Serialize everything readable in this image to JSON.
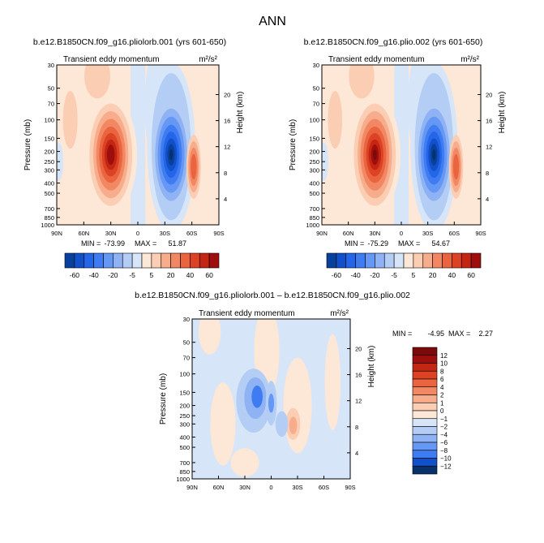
{
  "page_title": "ANN",
  "colors": {
    "neg": [
      "#08306b",
      "#08419c",
      "#1150c8",
      "#2565e8",
      "#3f7cf2",
      "#6597f4",
      "#8eb2f3",
      "#b4cdf5",
      "#d6e5f8"
    ],
    "pos": [
      "#fde7d7",
      "#fbcdb3",
      "#f7ac8b",
      "#f18863",
      "#e9643f",
      "#dc4224",
      "#c42614",
      "#9e0e0c",
      "#7d0a0a"
    ]
  },
  "chart_data": [
    {
      "id": "left",
      "type": "contour",
      "case": "b.e12.B1850CN.f09_g16.pliolorb.001  (yrs 601-650)",
      "variable": "Transient eddy momentum",
      "units": "m²/s²",
      "xlabels": [
        "90N",
        "60N",
        "30N",
        "0",
        "30S",
        "60S",
        "90S"
      ],
      "ylabel": "Pressure  (mb)",
      "pressure_ticks": [
        30,
        50,
        70,
        100,
        150,
        200,
        250,
        300,
        400,
        500,
        700,
        850,
        1000
      ],
      "y2label": "Height  (km)",
      "height_ticks": [
        4,
        8,
        12,
        16,
        20
      ],
      "stats": {
        "min_label": "MIN =",
        "min": "-73.99",
        "max_label": "MAX =",
        "max": "51.87"
      },
      "colorbar_labels": [
        "-60",
        "-40",
        "-20",
        "-5",
        "5",
        "20",
        "40",
        "60"
      ],
      "features": [
        {
          "lat": 30,
          "p": 215,
          "value": 51.87
        },
        {
          "lat": -37,
          "p": 215,
          "value": -73.99
        },
        {
          "lat": -62,
          "p": 280,
          "value": 22
        },
        {
          "lat": 45,
          "p": 40,
          "value": 8
        },
        {
          "lat": 75,
          "p": 100,
          "value": 5
        }
      ]
    },
    {
      "id": "right",
      "type": "contour",
      "case": "b.e12.B1850CN.f09_g16.plio.002  (yrs 601-650)",
      "variable": "Transient eddy momentum",
      "units": "m²/s²",
      "xlabels": [
        "90N",
        "60N",
        "30N",
        "0",
        "30S",
        "60S",
        "90S"
      ],
      "ylabel": "Pressure  (mb)",
      "pressure_ticks": [
        30,
        50,
        70,
        100,
        150,
        200,
        250,
        300,
        400,
        500,
        700,
        850,
        1000
      ],
      "y2label": "Height  (km)",
      "height_ticks": [
        4,
        8,
        12,
        16,
        20
      ],
      "stats": {
        "min_label": "MIN =",
        "min": "-75.29",
        "max_label": "MAX =",
        "max": "54.67"
      },
      "colorbar_labels": [
        "-60",
        "-40",
        "-20",
        "-5",
        "5",
        "20",
        "40",
        "60"
      ],
      "features": [
        {
          "lat": 30,
          "p": 215,
          "value": 54.67
        },
        {
          "lat": -37,
          "p": 215,
          "value": -75.29
        },
        {
          "lat": -62,
          "p": 280,
          "value": 23
        },
        {
          "lat": 45,
          "p": 40,
          "value": 8
        },
        {
          "lat": 75,
          "p": 100,
          "value": 5
        }
      ]
    },
    {
      "id": "diff",
      "type": "contour",
      "case": "b.e12.B1850CN.f09_g16.pliolorb.001 – b.e12.B1850CN.f09_g16.plio.002",
      "variable": "Transient eddy momentum",
      "units": "m²/s²",
      "xlabels": [
        "90N",
        "60N",
        "30N",
        "0",
        "30S",
        "60S",
        "90S"
      ],
      "ylabel": "Pressure  (mb)",
      "pressure_ticks": [
        30,
        50,
        70,
        100,
        150,
        200,
        250,
        300,
        400,
        500,
        700,
        850,
        1000
      ],
      "y2label": "Height  (km)",
      "height_ticks": [
        4,
        8,
        12,
        16,
        20
      ],
      "stats": {
        "min_label": "MIN =",
        "min": "-4.95",
        "max_label": "MAX =",
        "max": "2.27"
      },
      "colorbar_labels": [
        "12",
        "10",
        "8",
        "6",
        "4",
        "2",
        "1",
        "0",
        "−1",
        "−2",
        "−4",
        "−6",
        "−8",
        "−10",
        "−12"
      ],
      "features": [
        {
          "lat": 18,
          "p": 170,
          "value": -4.95
        },
        {
          "lat": 0,
          "p": 190,
          "value": -3.5
        },
        {
          "lat": -25,
          "p": 300,
          "value": 2.27
        },
        {
          "lat": 50,
          "p": 250,
          "value": 1.2
        },
        {
          "lat": -55,
          "p": 400,
          "value": 0.8
        }
      ]
    }
  ]
}
